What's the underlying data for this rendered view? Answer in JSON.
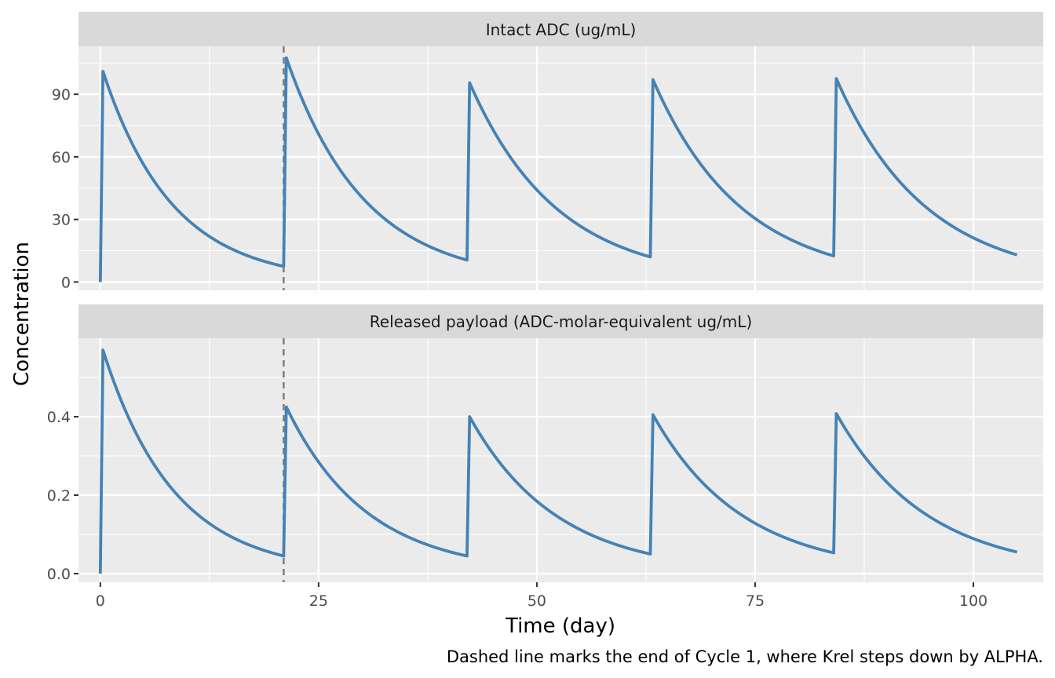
{
  "chart_data": {
    "type": "line",
    "xlabel": "Time (day)",
    "ylabel": "Concentration",
    "caption": "Dashed line marks the end of Cycle 1, where Krel steps down by ALPHA.",
    "xlim": [
      -2.5,
      108
    ],
    "x_ticks": [
      0,
      25,
      50,
      75,
      100
    ],
    "x_tick_labels": [
      "0",
      "25",
      "50",
      "75",
      "100"
    ],
    "vline_x": 21,
    "line_color": "#4682B4",
    "vline_color": "#808080",
    "panel_background": "#EBEBEB",
    "strip_background": "#D9D9D9",
    "grid": true,
    "legend": "none",
    "panels": [
      {
        "title": "Intact ADC (ug/mL)",
        "ylim": [
          -4,
          113
        ],
        "y_ticks": [
          0,
          30,
          60,
          90
        ],
        "y_tick_labels": [
          "0",
          "30",
          "60",
          "90"
        ],
        "series": [
          {
            "dose_times": [
              0,
              21,
              42,
              63,
              84
            ],
            "peaks": [
              101,
              107.5,
              95.5,
              97,
              97.5
            ],
            "troughs": [
              7.5,
              10.5,
              12,
              12.5,
              13
            ],
            "x_end": 105
          }
        ]
      },
      {
        "title": "Released payload (ADC-molar-equivalent ug/mL)",
        "ylim": [
          -0.022,
          0.6
        ],
        "y_ticks": [
          0.0,
          0.2,
          0.4
        ],
        "y_tick_labels": [
          "0.0",
          "0.2",
          "0.4"
        ],
        "series": [
          {
            "dose_times": [
              0,
              21,
              42,
              63,
              84
            ],
            "peaks": [
              0.57,
              0.425,
              0.4,
              0.405,
              0.408
            ],
            "troughs": [
              0.045,
              0.045,
              0.05,
              0.053,
              0.055
            ],
            "x_end": 105
          }
        ]
      }
    ]
  }
}
